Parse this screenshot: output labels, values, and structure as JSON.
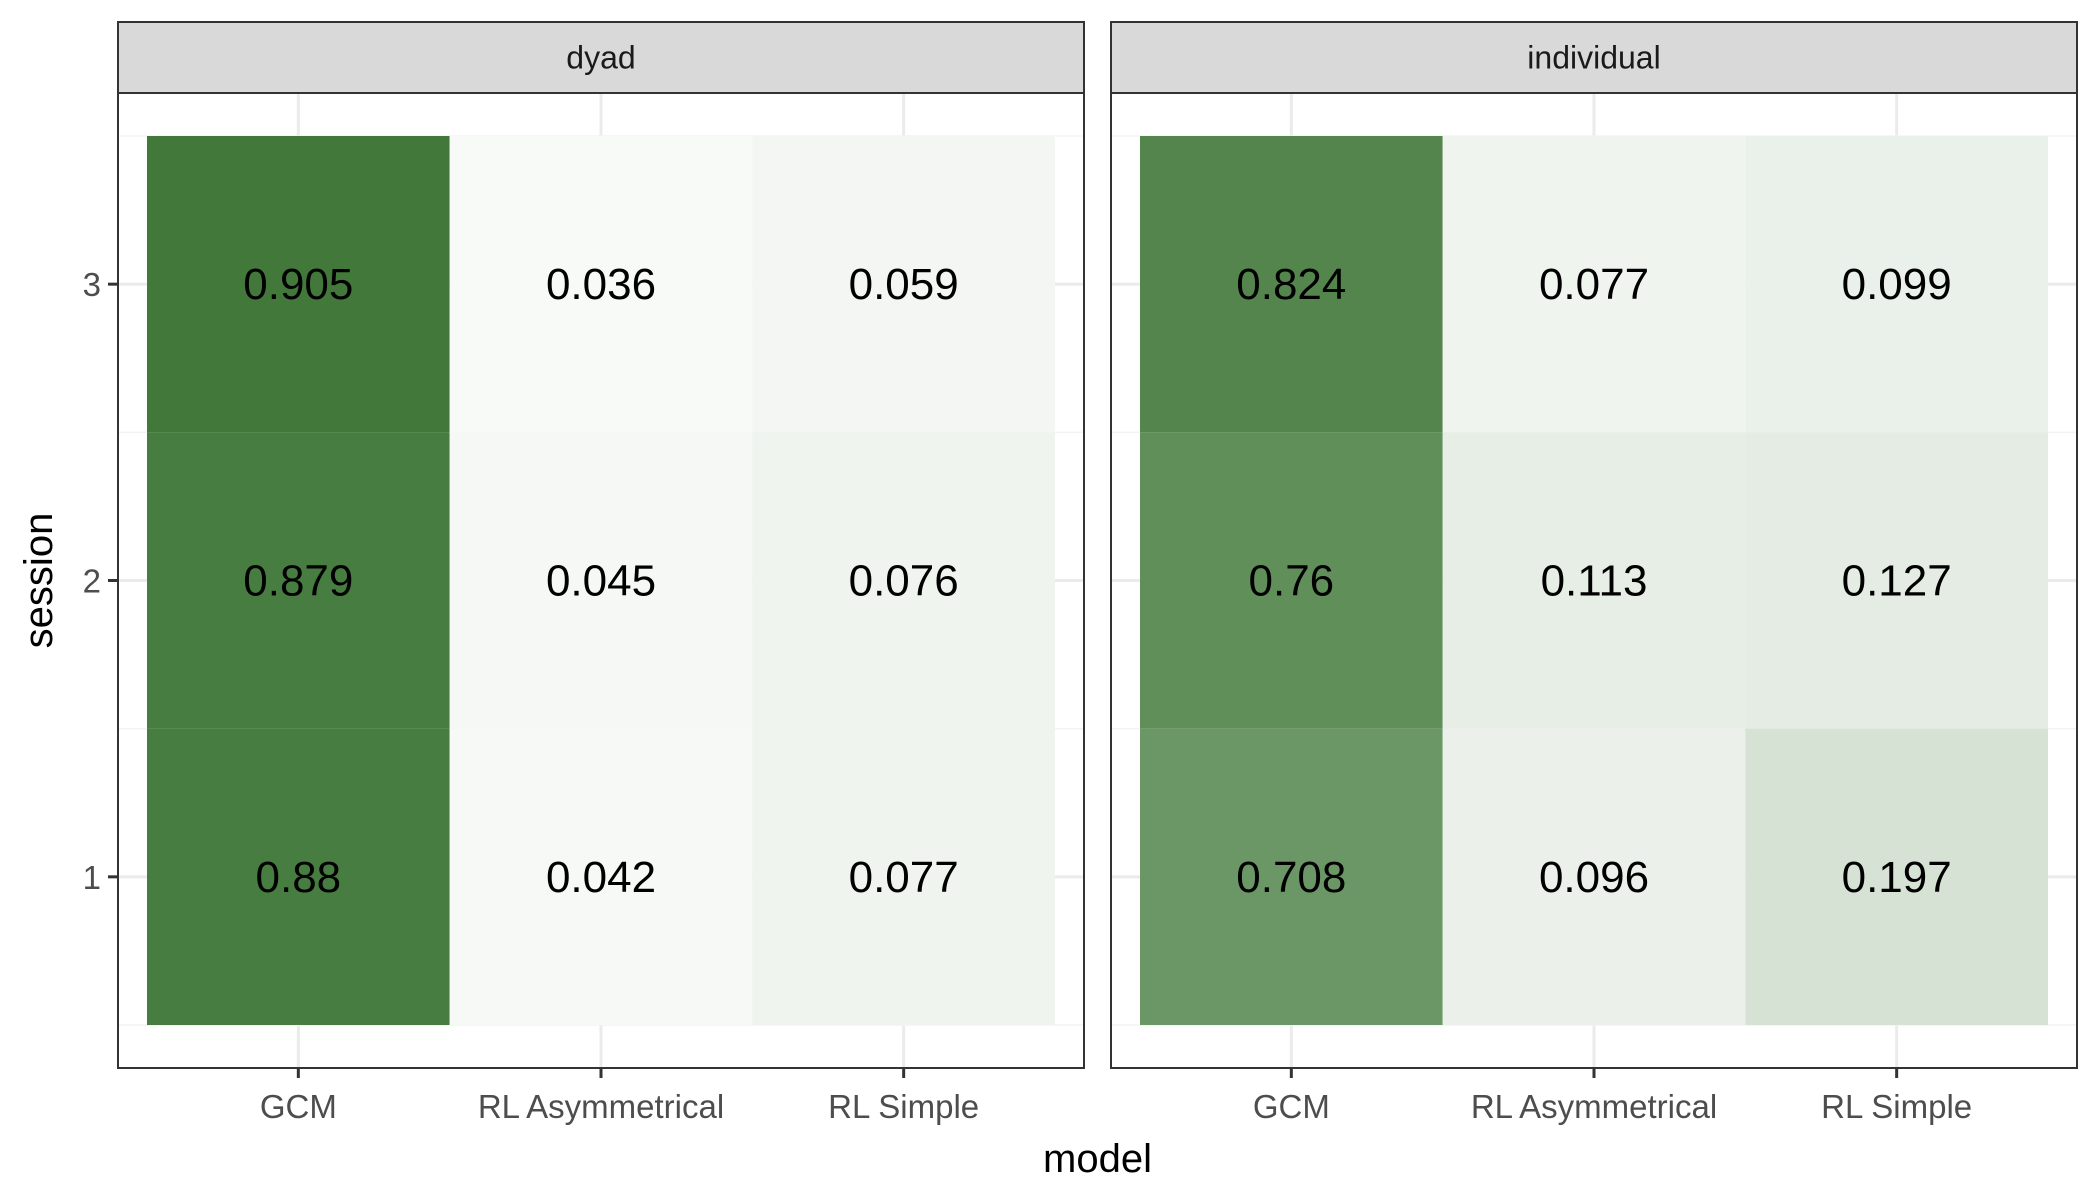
{
  "chart_data": {
    "type": "heatmap",
    "title": "",
    "xlabel": "model",
    "ylabel": "session",
    "x_categories": [
      "GCM",
      "RL Asymmetrical",
      "RL Simple"
    ],
    "y_categories": [
      "1",
      "2",
      "3"
    ],
    "grid": true,
    "legend": "none",
    "colors": {
      "low": "#ffffff",
      "high": "#2e6b26",
      "strip": "#d9d9d9",
      "grid": "#ebebeb"
    },
    "facets": [
      {
        "name": "dyad",
        "cells": [
          {
            "x": "GCM",
            "y": "3",
            "value": 0.905,
            "label": "0.905"
          },
          {
            "x": "RL Asymmetrical",
            "y": "3",
            "value": 0.036,
            "label": "0.036"
          },
          {
            "x": "RL Simple",
            "y": "3",
            "value": 0.059,
            "label": "0.059"
          },
          {
            "x": "GCM",
            "y": "2",
            "value": 0.879,
            "label": "0.879"
          },
          {
            "x": "RL Asymmetrical",
            "y": "2",
            "value": 0.045,
            "label": "0.045"
          },
          {
            "x": "RL Simple",
            "y": "2",
            "value": 0.076,
            "label": "0.076"
          },
          {
            "x": "GCM",
            "y": "1",
            "value": 0.88,
            "label": "0.88"
          },
          {
            "x": "RL Asymmetrical",
            "y": "1",
            "value": 0.042,
            "label": "0.042"
          },
          {
            "x": "RL Simple",
            "y": "1",
            "value": 0.077,
            "label": "0.077"
          }
        ]
      },
      {
        "name": "individual",
        "cells": [
          {
            "x": "GCM",
            "y": "3",
            "value": 0.824,
            "label": "0.824"
          },
          {
            "x": "RL Asymmetrical",
            "y": "3",
            "value": 0.077,
            "label": "0.077"
          },
          {
            "x": "RL Simple",
            "y": "3",
            "value": 0.099,
            "label": "0.099"
          },
          {
            "x": "GCM",
            "y": "2",
            "value": 0.76,
            "label": "0.76"
          },
          {
            "x": "RL Asymmetrical",
            "y": "2",
            "value": 0.113,
            "label": "0.113"
          },
          {
            "x": "RL Simple",
            "y": "2",
            "value": 0.127,
            "label": "0.127"
          },
          {
            "x": "GCM",
            "y": "1",
            "value": 0.708,
            "label": "0.708"
          },
          {
            "x": "RL Asymmetrical",
            "y": "1",
            "value": 0.096,
            "label": "0.096"
          },
          {
            "x": "RL Simple",
            "y": "1",
            "value": 0.197,
            "label": "0.197"
          }
        ]
      }
    ]
  }
}
